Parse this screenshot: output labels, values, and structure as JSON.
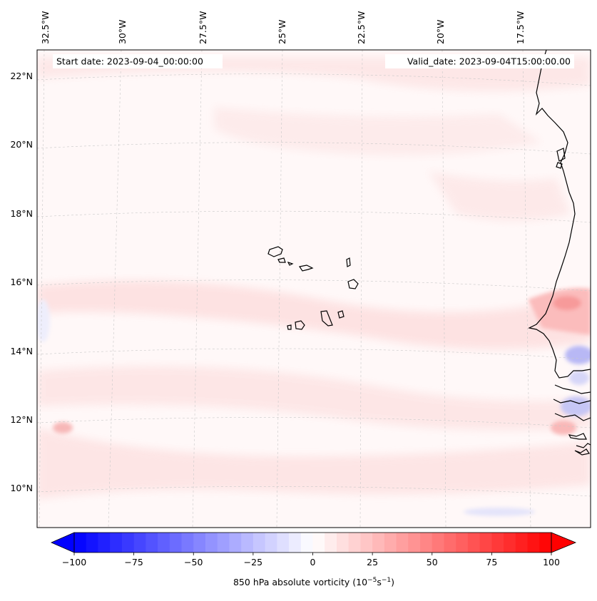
{
  "map": {
    "start_date_label": "Start date: 2023-09-04_00:00:00",
    "valid_date_label": "Valid_date: 2023-09-04T15:00:00.00",
    "lon_labels": [
      "32.5°W",
      "30°W",
      "27.5°W",
      "25°W",
      "22.5°W",
      "20°W",
      "17.5°W"
    ],
    "lat_labels": [
      "22°N",
      "20°N",
      "18°N",
      "16°N",
      "14°N",
      "12°N",
      "10°N"
    ],
    "field": "850 hPa absolute vorticity"
  },
  "colorbar": {
    "label_text": "850 hPa absolute vorticity (10",
    "label_exp1": "−5",
    "label_mid": "s",
    "label_exp2": "−1",
    "label_close": ")",
    "ticks": [
      "−100",
      "−75",
      "−50",
      "−25",
      "0",
      "25",
      "50",
      "75",
      "100"
    ],
    "min": -100,
    "max": 100,
    "negative_color": "#0000ff",
    "neutral_color": "#ffffff",
    "positive_color": "#ff0000"
  }
}
